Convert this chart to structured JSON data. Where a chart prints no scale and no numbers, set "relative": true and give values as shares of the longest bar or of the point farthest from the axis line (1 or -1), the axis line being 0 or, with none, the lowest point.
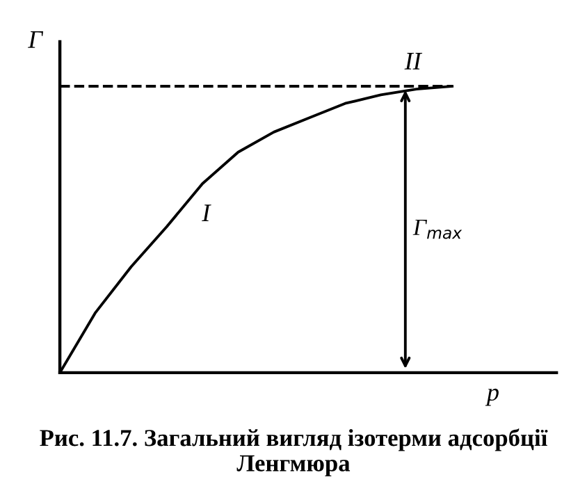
{
  "chart_data": {
    "type": "line",
    "relative": true,
    "xlabel": "p",
    "ylabel": "Γ",
    "categories": [
      null,
      null,
      null,
      null,
      null,
      null,
      null,
      null,
      null,
      null,
      null,
      null
    ],
    "series": [
      {
        "color": "#000000",
        "values": [
          0,
          0.21,
          0.37,
          0.51,
          0.66,
          0.77,
          0.84,
          0.89,
          0.94,
          0.97,
          0.99,
          1.0
        ]
      }
    ],
    "ref_lines": [
      {
        "axis": "y",
        "value": 1.0,
        "color": "#000000",
        "line_style": "dashed"
      }
    ],
    "annotations": [
      "I",
      "II",
      "Γ$_{max}$",
      "Рис. 11.7. Загальний вигляд ізотерми адсорбції Ленгмюра"
    ],
    "legend": false,
    "marker": "none",
    "line_style": "solid"
  }
}
